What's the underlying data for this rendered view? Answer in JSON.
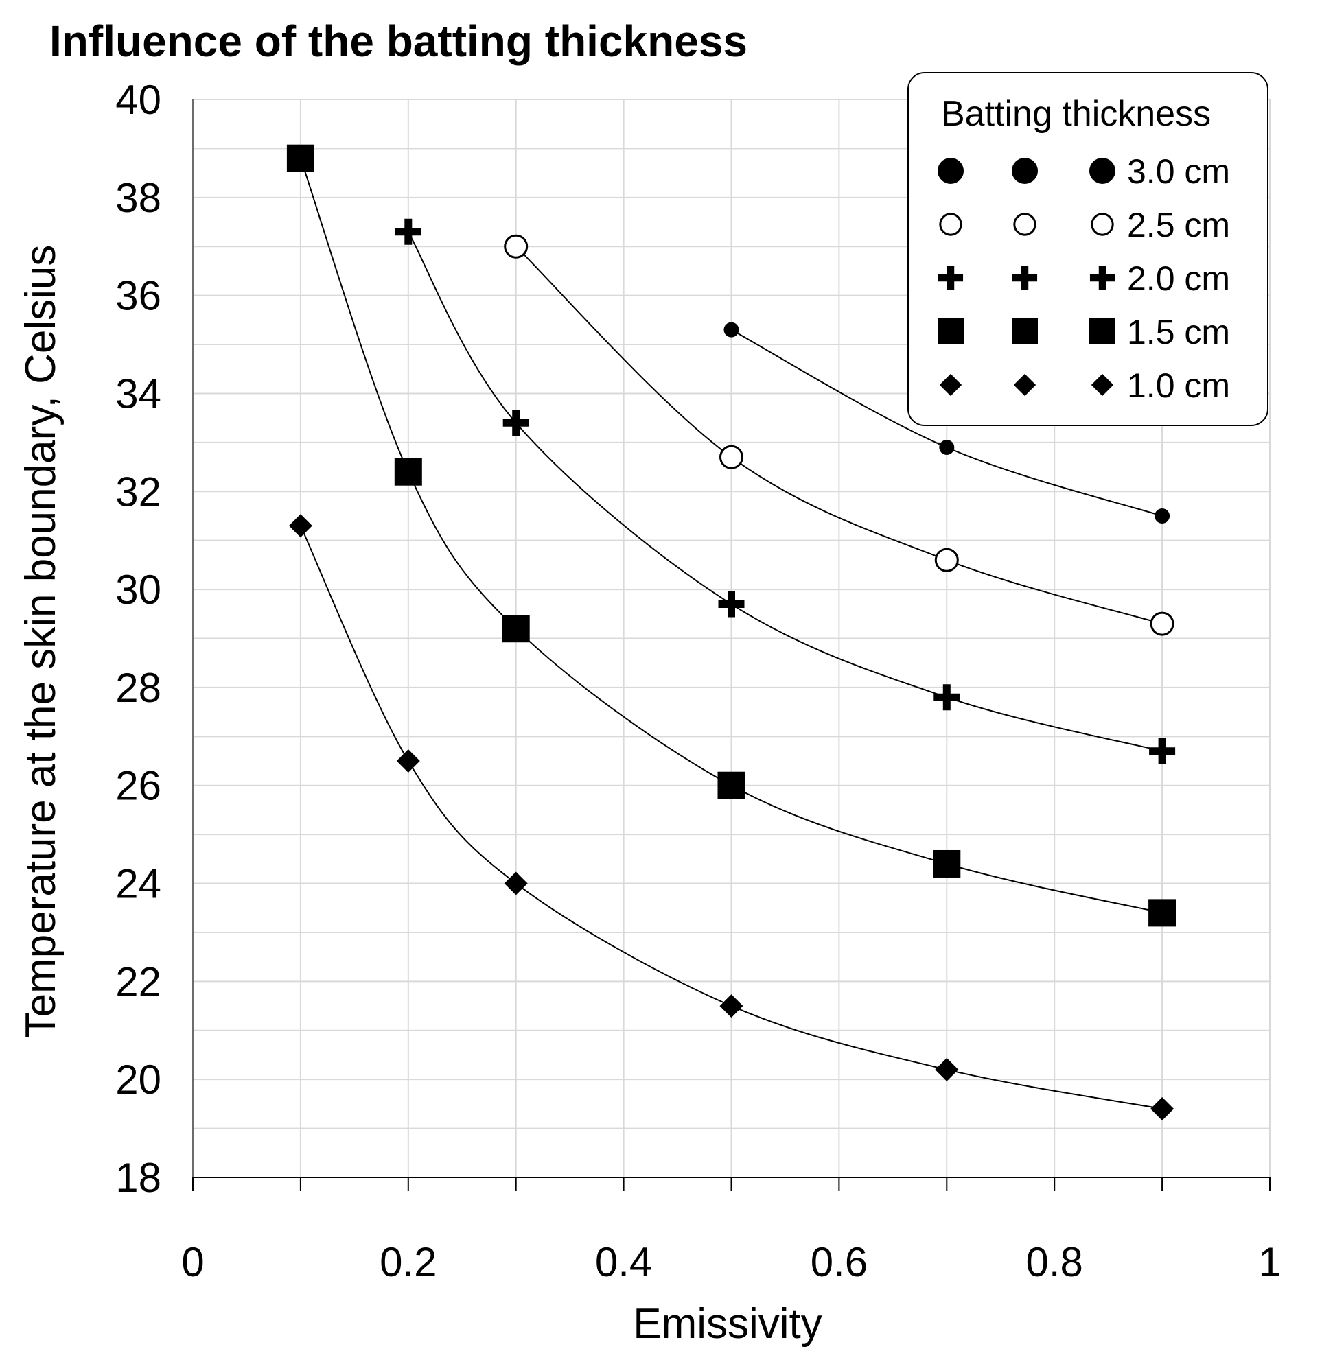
{
  "chart_data": {
    "type": "scatter",
    "title": "Influence of the batting thickness",
    "xlabel": "Emissivity",
    "ylabel": "Temperature at the skin boundary, Celsius",
    "xlim": [
      0,
      1
    ],
    "ylim": [
      18,
      40
    ],
    "x_ticks": [
      "0",
      "0.2",
      "0.4",
      "0.6",
      "0.8",
      "1"
    ],
    "y_ticks": [
      "40",
      "38",
      "36",
      "34",
      "32",
      "30",
      "28",
      "26",
      "24",
      "22",
      "20",
      "18"
    ],
    "grid": true,
    "legend": {
      "title": "Batting thickness",
      "placement": "top-right"
    },
    "series": [
      {
        "name": "3.0 cm",
        "marker": "filled-circle-small",
        "x": [
          0.5,
          0.7,
          0.9
        ],
        "y": [
          35.3,
          32.9,
          31.5
        ]
      },
      {
        "name": "2.5 cm",
        "marker": "open-circle",
        "x": [
          0.3,
          0.5,
          0.7,
          0.9
        ],
        "y": [
          37.0,
          32.7,
          30.6,
          29.3
        ]
      },
      {
        "name": "2.0 cm",
        "marker": "plus",
        "x": [
          0.2,
          0.3,
          0.5,
          0.7,
          0.9
        ],
        "y": [
          37.3,
          33.4,
          29.7,
          27.8,
          26.7
        ]
      },
      {
        "name": "1.5 cm",
        "marker": "square",
        "x": [
          0.1,
          0.2,
          0.3,
          0.5,
          0.7,
          0.9
        ],
        "y": [
          38.8,
          32.4,
          29.2,
          26.0,
          24.4,
          23.4
        ]
      },
      {
        "name": "1.0 cm",
        "marker": "diamond",
        "x": [
          0.1,
          0.2,
          0.3,
          0.5,
          0.7,
          0.9
        ],
        "y": [
          31.3,
          26.5,
          24.0,
          21.5,
          20.2,
          19.4
        ]
      }
    ]
  }
}
